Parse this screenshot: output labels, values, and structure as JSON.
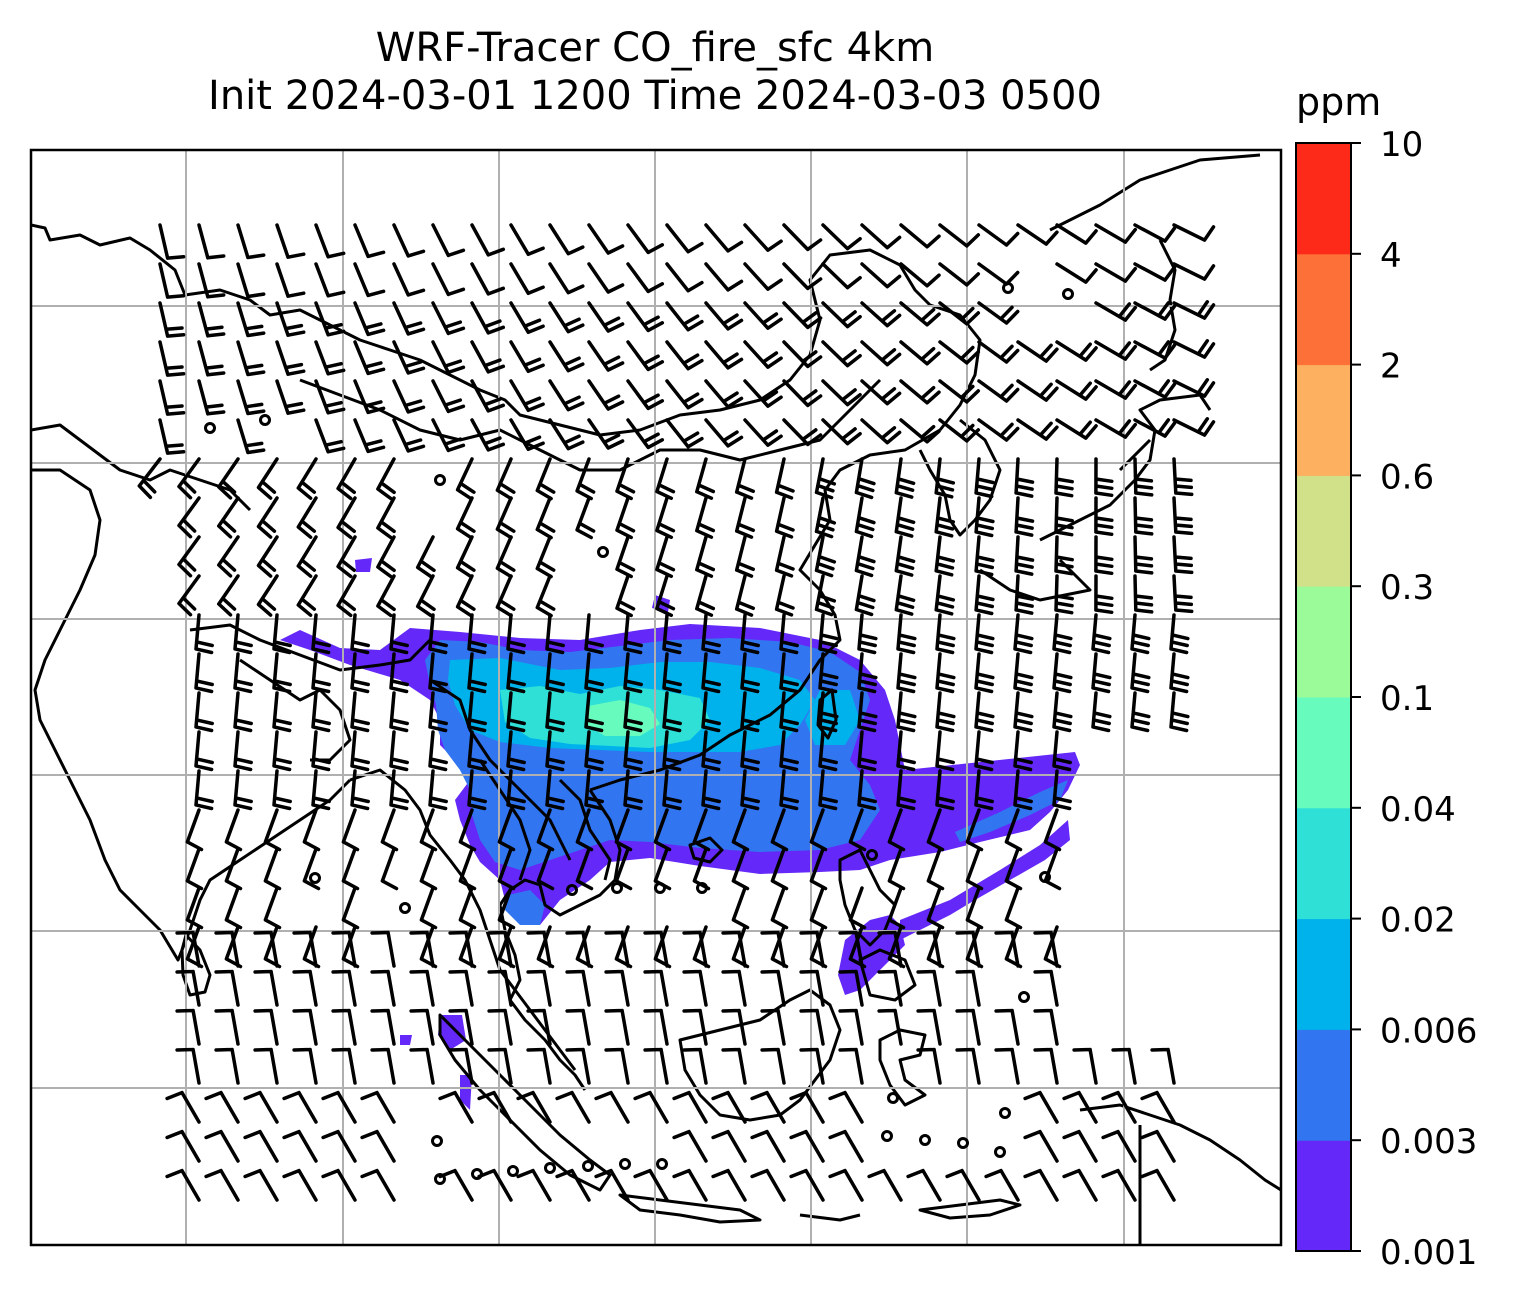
{
  "title": {
    "line1": "WRF-Tracer CO_fire_sfc 4km",
    "line2": "Init 2024-03-01 1200 Time 2024-03-03 0500"
  },
  "colorbar": {
    "unit": "ppm",
    "levels": [
      "0.001",
      "0.003",
      "0.006",
      "0.02",
      "0.04",
      "0.1",
      "0.3",
      "0.6",
      "2",
      "4",
      "10"
    ],
    "colors": [
      "#6428f8",
      "#3275f0",
      "#00b2ec",
      "#2ee0d6",
      "#67fbbe",
      "#9bfb99",
      "#d0e189",
      "#fdb060",
      "#fd7038",
      "#fd2a1a"
    ]
  },
  "map": {
    "background": "#ffffff",
    "coastline_color": "#000000",
    "gridline_color": "#b0b0b0",
    "wind_barb_color": "#000000",
    "plume_levels_shown": [
      "0.001",
      "0.003",
      "0.006",
      "0.02",
      "0.04"
    ]
  }
}
